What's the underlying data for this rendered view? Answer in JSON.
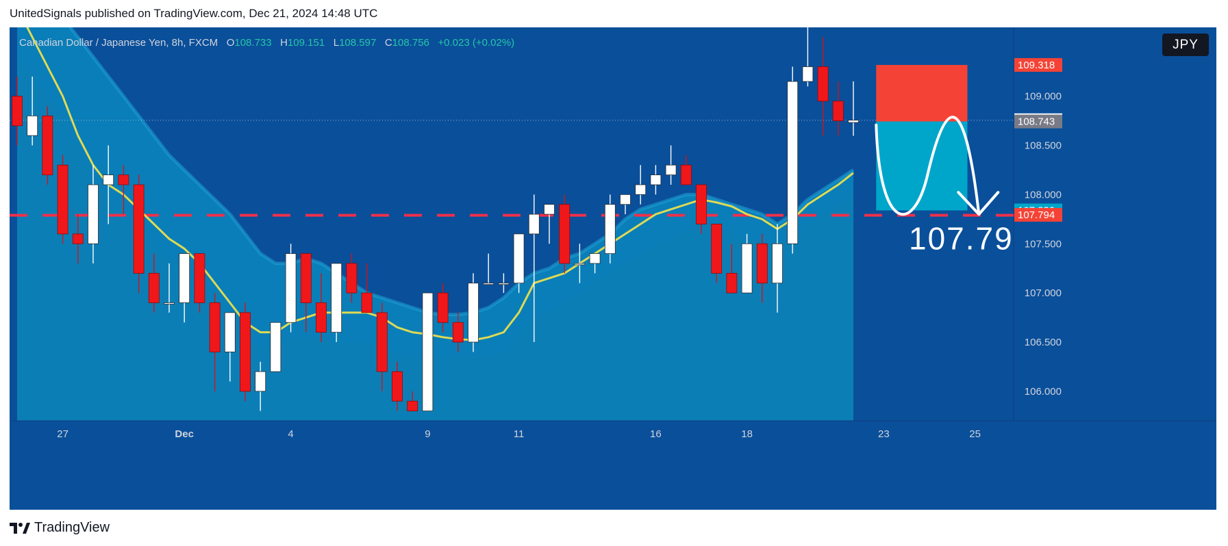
{
  "header": {
    "text": "UnitedSignals published on TradingView.com, Dec 21, 2024 14:48 UTC"
  },
  "legend": {
    "symbol": "Canadian Dollar / Japanese Yen, 8h, FXCM",
    "o_label": "O",
    "o_value": "108.733",
    "h_label": "H",
    "h_value": "109.151",
    "l_label": "L",
    "l_value": "108.597",
    "c_label": "C",
    "c_value": "108.756",
    "change": "+0.023 (+0.02%)"
  },
  "currency_button": "JPY",
  "footer": {
    "brand": "TradingView"
  },
  "colors": {
    "background": "#0a4f9a",
    "up_candle": "#ffffff",
    "down_candle": "#f0171a",
    "ema_line": "#f5e44a",
    "ema_fill": "#0a86bd",
    "stop_zone": "#f44336",
    "target_zone": "#00a6c9",
    "dashed_level": "#f0304a"
  },
  "chart_data": {
    "type": "candlestick",
    "symbol": "Canadian Dollar / Japanese Yen",
    "timeframe": "8h",
    "ylim": [
      105.7,
      109.7
    ],
    "y_ticks": [
      "106.000",
      "106.500",
      "107.000",
      "107.500",
      "108.000",
      "108.500",
      "109.000"
    ],
    "x_ticks": [
      "27",
      "Dec",
      "4",
      "9",
      "11",
      "16",
      "18",
      "23",
      "25"
    ],
    "x_tick_index": [
      3,
      11,
      18,
      27,
      33,
      42,
      48,
      57,
      63
    ],
    "price_badges": [
      {
        "label": "109.318",
        "value": 109.318,
        "color": "#f44336"
      },
      {
        "label": "108.756",
        "value": 108.756,
        "color": "#ffffff"
      },
      {
        "label": "108.743",
        "value": 108.743,
        "color": "#787b86"
      },
      {
        "label": "107.839",
        "value": 107.839,
        "color": "#00a6c9"
      },
      {
        "label": "107.794",
        "value": 107.794,
        "color": "#f44336"
      }
    ],
    "target_label": "107.79",
    "dashed_level": 107.79,
    "position": {
      "stop": 109.318,
      "entry": 108.743,
      "target": 107.839,
      "x_start": 56.5,
      "x_end": 62.5
    },
    "candles": [
      {
        "o": 109.0,
        "h": 109.2,
        "l": 108.5,
        "c": 108.7
      },
      {
        "o": 108.6,
        "h": 109.2,
        "l": 108.5,
        "c": 108.8
      },
      {
        "o": 108.8,
        "h": 108.9,
        "l": 108.1,
        "c": 108.2
      },
      {
        "o": 108.3,
        "h": 108.4,
        "l": 107.5,
        "c": 107.6
      },
      {
        "o": 107.6,
        "h": 107.8,
        "l": 107.3,
        "c": 107.5
      },
      {
        "o": 107.5,
        "h": 108.3,
        "l": 107.3,
        "c": 108.1
      },
      {
        "o": 108.1,
        "h": 108.5,
        "l": 107.7,
        "c": 108.2
      },
      {
        "o": 108.2,
        "h": 108.3,
        "l": 107.8,
        "c": 108.1
      },
      {
        "o": 108.1,
        "h": 108.2,
        "l": 107.0,
        "c": 107.2
      },
      {
        "o": 107.2,
        "h": 107.4,
        "l": 106.8,
        "c": 106.9
      },
      {
        "o": 106.9,
        "h": 107.3,
        "l": 106.8,
        "c": 106.9
      },
      {
        "o": 106.9,
        "h": 107.4,
        "l": 106.7,
        "c": 107.4
      },
      {
        "o": 107.4,
        "h": 107.4,
        "l": 106.8,
        "c": 106.9
      },
      {
        "o": 106.9,
        "h": 107.0,
        "l": 106.0,
        "c": 106.4
      },
      {
        "o": 106.4,
        "h": 106.8,
        "l": 106.1,
        "c": 106.8
      },
      {
        "o": 106.8,
        "h": 106.9,
        "l": 105.9,
        "c": 106.0
      },
      {
        "o": 106.0,
        "h": 106.3,
        "l": 105.8,
        "c": 106.2
      },
      {
        "o": 106.2,
        "h": 106.7,
        "l": 106.2,
        "c": 106.7
      },
      {
        "o": 106.7,
        "h": 107.5,
        "l": 106.6,
        "c": 107.4
      },
      {
        "o": 107.4,
        "h": 107.4,
        "l": 106.6,
        "c": 106.9
      },
      {
        "o": 106.9,
        "h": 107.2,
        "l": 106.5,
        "c": 106.6
      },
      {
        "o": 106.6,
        "h": 107.3,
        "l": 106.5,
        "c": 107.3
      },
      {
        "o": 107.3,
        "h": 107.4,
        "l": 106.9,
        "c": 107.0
      },
      {
        "o": 107.0,
        "h": 107.3,
        "l": 106.8,
        "c": 106.8
      },
      {
        "o": 106.8,
        "h": 106.9,
        "l": 106.0,
        "c": 106.2
      },
      {
        "o": 106.2,
        "h": 106.3,
        "l": 105.8,
        "c": 105.9
      },
      {
        "o": 105.9,
        "h": 106.0,
        "l": 105.8,
        "c": 105.8
      },
      {
        "o": 105.8,
        "h": 107.0,
        "l": 105.8,
        "c": 107.0
      },
      {
        "o": 107.0,
        "h": 107.1,
        "l": 106.6,
        "c": 106.7
      },
      {
        "o": 106.7,
        "h": 106.8,
        "l": 106.4,
        "c": 106.5
      },
      {
        "o": 106.5,
        "h": 107.2,
        "l": 106.4,
        "c": 107.1
      },
      {
        "o": 107.1,
        "h": 107.4,
        "l": 107.1,
        "c": 107.1
      },
      {
        "o": 107.1,
        "h": 107.2,
        "l": 107.0,
        "c": 107.1
      },
      {
        "o": 107.1,
        "h": 107.6,
        "l": 107.0,
        "c": 107.6
      },
      {
        "o": 107.6,
        "h": 108.0,
        "l": 106.5,
        "c": 107.8
      },
      {
        "o": 107.8,
        "h": 107.9,
        "l": 107.5,
        "c": 107.9
      },
      {
        "o": 107.9,
        "h": 108.0,
        "l": 107.2,
        "c": 107.3
      },
      {
        "o": 107.3,
        "h": 107.5,
        "l": 107.1,
        "c": 107.3
      },
      {
        "o": 107.3,
        "h": 107.4,
        "l": 107.2,
        "c": 107.4
      },
      {
        "o": 107.4,
        "h": 108.0,
        "l": 107.3,
        "c": 107.9
      },
      {
        "o": 107.9,
        "h": 108.0,
        "l": 107.8,
        "c": 108.0
      },
      {
        "o": 108.0,
        "h": 108.3,
        "l": 107.9,
        "c": 108.1
      },
      {
        "o": 108.1,
        "h": 108.3,
        "l": 108.0,
        "c": 108.2
      },
      {
        "o": 108.2,
        "h": 108.5,
        "l": 108.1,
        "c": 108.3
      },
      {
        "o": 108.3,
        "h": 108.4,
        "l": 108.1,
        "c": 108.1
      },
      {
        "o": 108.1,
        "h": 108.1,
        "l": 107.6,
        "c": 107.7
      },
      {
        "o": 107.7,
        "h": 107.7,
        "l": 107.1,
        "c": 107.2
      },
      {
        "o": 107.2,
        "h": 107.5,
        "l": 107.0,
        "c": 107.0
      },
      {
        "o": 107.0,
        "h": 107.6,
        "l": 107.0,
        "c": 107.5
      },
      {
        "o": 107.5,
        "h": 107.6,
        "l": 106.9,
        "c": 107.1
      },
      {
        "o": 107.1,
        "h": 107.7,
        "l": 106.8,
        "c": 107.5
      },
      {
        "o": 107.5,
        "h": 109.3,
        "l": 107.4,
        "c": 109.15
      },
      {
        "o": 109.15,
        "h": 109.7,
        "l": 109.1,
        "c": 109.3
      },
      {
        "o": 109.3,
        "h": 109.6,
        "l": 108.6,
        "c": 108.95
      },
      {
        "o": 108.95,
        "h": 109.15,
        "l": 108.6,
        "c": 108.75
      },
      {
        "o": 108.733,
        "h": 109.151,
        "l": 108.597,
        "c": 108.756
      }
    ],
    "ema": [
      109.9,
      109.6,
      109.3,
      109.0,
      108.6,
      108.3,
      108.1,
      108.0,
      107.85,
      107.7,
      107.55,
      107.45,
      107.3,
      107.1,
      106.9,
      106.7,
      106.6,
      106.6,
      106.7,
      106.75,
      106.8,
      106.8,
      106.8,
      106.8,
      106.75,
      106.65,
      106.6,
      106.58,
      106.55,
      106.53,
      106.52,
      106.55,
      106.6,
      106.8,
      107.1,
      107.15,
      107.2,
      107.3,
      107.4,
      107.5,
      107.6,
      107.7,
      107.8,
      107.85,
      107.9,
      107.95,
      107.92,
      107.88,
      107.8,
      107.75,
      107.65,
      107.75,
      107.9,
      108.0,
      108.1,
      108.22
    ],
    "ema_band_upper": [
      110.3,
      110.1,
      109.95,
      109.8,
      109.6,
      109.4,
      109.2,
      109.0,
      108.8,
      108.6,
      108.4,
      108.25,
      108.1,
      107.95,
      107.8,
      107.6,
      107.4,
      107.3,
      107.3,
      107.35,
      107.3,
      107.2,
      107.1,
      107.0,
      106.95,
      106.9,
      106.85,
      106.8,
      106.78,
      106.78,
      106.8,
      106.85,
      106.95,
      107.1,
      107.2,
      107.25,
      107.35,
      107.4,
      107.5,
      107.6,
      107.75,
      107.85,
      107.9,
      107.95,
      108.0,
      108.0,
      107.95,
      107.9,
      107.85,
      107.8,
      107.7,
      107.8,
      107.95,
      108.05,
      108.15,
      108.25
    ],
    "ema_band_lower": [
      109.4,
      109.2,
      109.0,
      108.8,
      108.5,
      108.2,
      108.0,
      107.85,
      107.7,
      107.5,
      107.35,
      107.2,
      107.05,
      106.9,
      106.7,
      106.55,
      106.45,
      106.45,
      106.55,
      106.55,
      106.55,
      106.5,
      106.5,
      106.5,
      106.45,
      106.4,
      106.35,
      106.35,
      106.35,
      106.35,
      106.35,
      106.35,
      106.4,
      106.55,
      106.75,
      106.8,
      106.9,
      107.0,
      107.1,
      107.2,
      107.3,
      107.4,
      107.5,
      107.55,
      107.65,
      107.7,
      107.7,
      107.6,
      107.55,
      107.5,
      107.45,
      107.55,
      107.7,
      107.8,
      107.9,
      108.0
    ]
  }
}
